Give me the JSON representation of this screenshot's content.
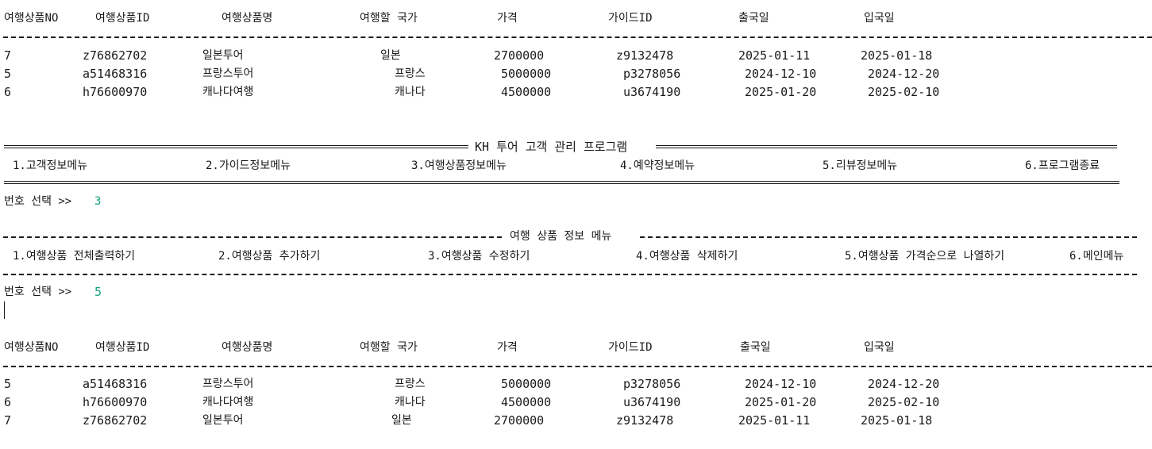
{
  "table_headers": [
    "여행상품NO",
    "여행상품ID",
    "여행상품명",
    "여행할 국가",
    "가격",
    "가이드ID",
    "출국일",
    "입국일"
  ],
  "table1": [
    {
      "no": "7",
      "id": "z76862702",
      "name": "일본투어",
      "country": "일본",
      "price": "2700000",
      "guide": "z9132478",
      "out": "2025-01-11",
      "in": "2025-01-18"
    },
    {
      "no": "5",
      "id": "a51468316",
      "name": "프랑스투어",
      "country": "프랑스",
      "price": "5000000",
      "guide": "p3278056",
      "out": "2024-12-10",
      "in": "2024-12-20"
    },
    {
      "no": "6",
      "id": "h76600970",
      "name": "캐나다여행",
      "country": "캐나다",
      "price": "4500000",
      "guide": "u3674190",
      "out": "2025-01-20",
      "in": "2025-02-10"
    }
  ],
  "main_menu": {
    "title": "KH 투어 고객 관리 프로그램",
    "items": [
      "1.고객정보메뉴",
      "2.가이드정보메뉴",
      "3.여행상품정보메뉴",
      "4.예약정보메뉴",
      "5.리뷰정보메뉴",
      "6.프로그램종료"
    ]
  },
  "prompt1": {
    "label": "번호 선택 >>",
    "value": "3"
  },
  "sub_menu": {
    "title": "여행 상품 정보 메뉴",
    "items": [
      "1.여행상품 전체출력하기",
      "2.여행상품 추가하기",
      "3.여행상품 수정하기",
      "4.여행상품 삭제하기",
      "5.여행상품 가격순으로 나열하기",
      "6.메인메뉴"
    ]
  },
  "prompt2": {
    "label": "번호 선택 >>",
    "value": "5"
  },
  "table2": [
    {
      "no": "5",
      "id": "a51468316",
      "name": "프랑스투어",
      "country": "프랑스",
      "price": "5000000",
      "guide": "p3278056",
      "out": "2024-12-10",
      "in": "2024-12-20"
    },
    {
      "no": "6",
      "id": "h76600970",
      "name": "캐나다여행",
      "country": "캐나다",
      "price": "4500000",
      "guide": "u3674190",
      "out": "2025-01-20",
      "in": "2025-02-10"
    },
    {
      "no": "7",
      "id": "z76862702",
      "name": "일본투어",
      "country": "일본",
      "price": "2700000",
      "guide": "z9132478",
      "out": "2025-01-11",
      "in": "2025-01-18"
    }
  ],
  "colors": {
    "text": "#1a1a1a",
    "input": "#14a37f",
    "background": "#ffffff"
  }
}
